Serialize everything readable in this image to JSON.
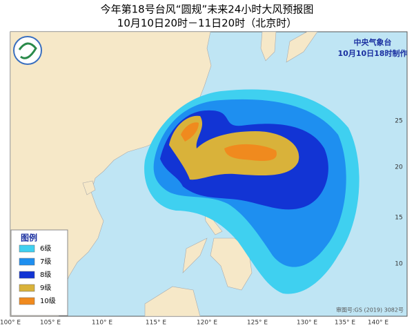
{
  "title": "今年第18号台风“圆规”未来24小时大风预报图",
  "subtitle": "10月10日20时－11日20时（北京时）",
  "agency": "中央气象台",
  "issued": "10月10日18时制作",
  "lon_labels": [
    "100° E",
    "105° E",
    "110° E",
    "115° E",
    "120° E",
    "125° E",
    "130° E",
    "135° E",
    "140° E"
  ],
  "lat_labels": [
    "25",
    "20",
    "15",
    "10"
  ],
  "legend": {
    "title": "图例",
    "items": [
      {
        "label": "6级",
        "color": "#3fd0f0"
      },
      {
        "label": "7级",
        "color": "#1e8ff0"
      },
      {
        "label": "8级",
        "color": "#1234d4"
      },
      {
        "label": "9级",
        "color": "#d9b23a"
      },
      {
        "label": "10级",
        "color": "#f08a1e"
      }
    ]
  },
  "review_number": "审图号:GS (2019) 3082号"
}
